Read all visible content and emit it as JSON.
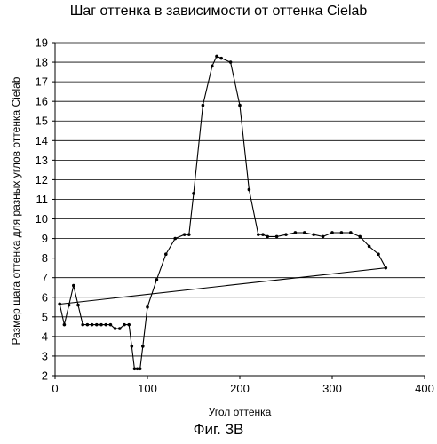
{
  "chart_data": {
    "type": "line",
    "title": "Шаг оттенка в зависимости от оттенка Cielab",
    "xlabel": "Угол оттенка",
    "ylabel": "Размер шага оттенка для разных углов оттенка Cielab",
    "caption": "Фиг. 3В",
    "xlim": [
      0,
      400
    ],
    "ylim": [
      2,
      19
    ],
    "xticks": [
      0,
      100,
      200,
      300,
      400
    ],
    "yticks": [
      2,
      3,
      4,
      5,
      6,
      7,
      8,
      9,
      10,
      11,
      12,
      13,
      14,
      15,
      16,
      17,
      18,
      19
    ],
    "grid": "horizontal",
    "series": [
      {
        "color": "#000000",
        "x": [
          5,
          10,
          15,
          20,
          25,
          30,
          35,
          40,
          45,
          50,
          55,
          60,
          65,
          70,
          75,
          80,
          83,
          86,
          89,
          92,
          95,
          100,
          110,
          120,
          130,
          140,
          145,
          150,
          160,
          170,
          175,
          180,
          190,
          200,
          210,
          220,
          225,
          230,
          240,
          250,
          260,
          270,
          280,
          290,
          300,
          310,
          320,
          330,
          340,
          350,
          358,
          5
        ],
        "y": [
          5.65,
          4.6,
          5.6,
          6.6,
          5.6,
          4.6,
          4.6,
          4.6,
          4.6,
          4.6,
          4.6,
          4.6,
          4.4,
          4.4,
          4.6,
          4.6,
          3.5,
          2.35,
          2.35,
          2.35,
          3.5,
          5.5,
          6.9,
          8.2,
          9.0,
          9.2,
          9.2,
          11.3,
          15.8,
          17.8,
          18.3,
          18.2,
          18.0,
          15.8,
          11.5,
          9.2,
          9.2,
          9.1,
          9.1,
          9.2,
          9.3,
          9.3,
          9.2,
          9.1,
          9.3,
          9.3,
          9.3,
          9.1,
          8.6,
          8.2,
          7.5,
          5.65
        ]
      }
    ]
  }
}
